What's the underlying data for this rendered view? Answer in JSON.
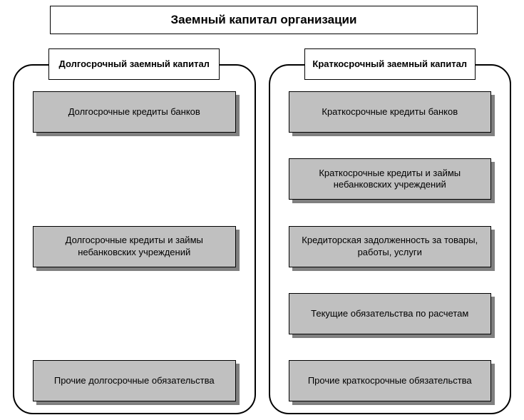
{
  "type": "flowchart",
  "background_color": "#ffffff",
  "title": "Заемный капитал организации",
  "title_fontsize": 17,
  "title_fontweight": "bold",
  "box_fill": "#c0c0c0",
  "box_shadow": "#808080",
  "border_color": "#000000",
  "frame_border_radius": 28,
  "header_fontsize": 13,
  "item_fontsize": 13,
  "columns": [
    {
      "header": "Долгосрочный заемный капитал",
      "items": [
        "Долгосрочные кредиты банков",
        "Долгосрочные кредиты и займы небанковских учреждений",
        "Прочие долгосрочные обязательства"
      ]
    },
    {
      "header": "Краткосрочный заемный капитал",
      "items": [
        "Краткосрочные кредиты банков",
        "Краткосрочные кредиты и займы небанковских учреждений",
        "Кредиторская задолженность за товары, работы, услуги",
        "Текущие обязательства по расчетам",
        "Прочие краткосрочные обязательства"
      ]
    }
  ]
}
